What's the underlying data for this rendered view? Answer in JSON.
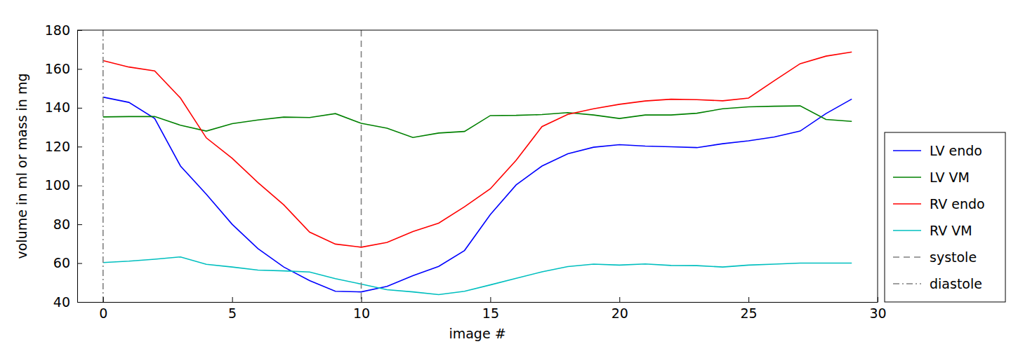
{
  "chart_data": {
    "type": "line",
    "x_label": "image #",
    "y_label": "volume in ml or mass in mg",
    "x": [
      0,
      1,
      2,
      3,
      4,
      5,
      6,
      7,
      8,
      9,
      10,
      11,
      12,
      13,
      14,
      15,
      16,
      17,
      18,
      19,
      20,
      21,
      22,
      23,
      24,
      25,
      26,
      27,
      28,
      29
    ],
    "xlim": [
      -1,
      30
    ],
    "xticks": [
      0,
      5,
      10,
      15,
      20,
      25,
      30
    ],
    "ylim": [
      40,
      180
    ],
    "yticks": [
      40,
      60,
      80,
      100,
      120,
      140,
      160,
      180
    ],
    "grid": false,
    "legend": "lower right",
    "series": [
      {
        "name": "LV endo",
        "color": "#0000ff",
        "line_style": "solid",
        "values": [
          145.5,
          142.8,
          134.5,
          110,
          95.5,
          80,
          67.5,
          58,
          51,
          45.5,
          45.2,
          48,
          53.5,
          58.3,
          66.5,
          85,
          100.3,
          110,
          116.3,
          119.7,
          121,
          120.3,
          119.9,
          119.5,
          121.5,
          123,
          125,
          128,
          137,
          144.5
        ]
      },
      {
        "name": "LV VM",
        "color": "#008000",
        "line_style": "solid",
        "values": [
          135.3,
          135.5,
          135.5,
          131,
          128,
          131.8,
          133.7,
          135.2,
          135,
          137,
          132,
          129.5,
          124.7,
          127,
          127.8,
          136,
          136.1,
          136.5,
          137.5,
          136.3,
          134.5,
          136.3,
          136.3,
          137.2,
          139.5,
          140.5,
          140.8,
          141,
          134,
          133
        ]
      },
      {
        "name": "RV endo",
        "color": "#ff0000",
        "line_style": "solid",
        "values": [
          164.3,
          161,
          159,
          145,
          124.5,
          114,
          101.5,
          90,
          76,
          69.8,
          68.2,
          70.7,
          76.3,
          80.6,
          89,
          98.3,
          113,
          130.3,
          136.6,
          139.5,
          141.8,
          143.5,
          144.4,
          144.2,
          143.6,
          145,
          154,
          162.7,
          166.6,
          168.7
        ]
      },
      {
        "name": "RV VM",
        "color": "#00bfbf",
        "line_style": "solid",
        "values": [
          60.3,
          61,
          62,
          63.2,
          59.4,
          58,
          56.4,
          56,
          55.4,
          52,
          49.2,
          46.3,
          45.2,
          43.8,
          45.5,
          48.8,
          52.2,
          55.5,
          58.2,
          59.5,
          59,
          59.6,
          58.8,
          58.7,
          58,
          59,
          59.5,
          60,
          60,
          60
        ]
      },
      {
        "name": "systole",
        "type": "vline",
        "color": "#808080",
        "line_style": "dashed",
        "x": [
          10
        ]
      },
      {
        "name": "diastole",
        "type": "vline",
        "color": "#808080",
        "line_style": "dashdot",
        "x": [
          0
        ]
      }
    ]
  }
}
